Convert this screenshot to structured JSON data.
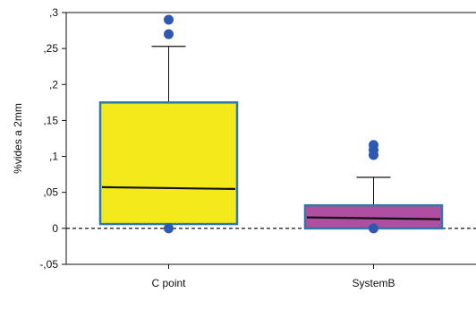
{
  "chart_data": {
    "type": "box",
    "ylabel": "%vides a 2mm",
    "xlabel": "",
    "ylim": [
      -0.05,
      0.3
    ],
    "yticks": [
      -0.05,
      0,
      0.05,
      0.1,
      0.15,
      0.2,
      0.25,
      0.3
    ],
    "ytick_labels": [
      "-,05",
      "0",
      ",05",
      ",1",
      ",15",
      ",2",
      ",25",
      ",3"
    ],
    "reference_line": 0,
    "categories": [
      "C point",
      "SystemB"
    ],
    "boxes": [
      {
        "category": "C point",
        "q1": 0.006,
        "median": 0.056,
        "q3": 0.175,
        "whisker_low": 0.006,
        "whisker_high": 0.253,
        "outliers": [
          0.29,
          0.27,
          0.0
        ],
        "fill": "#f4ea1b"
      },
      {
        "category": "SystemB",
        "q1": 0.0,
        "median": 0.014,
        "q3": 0.032,
        "whisker_low": 0.0,
        "whisker_high": 0.071,
        "outliers": [
          0.116,
          0.109,
          0.102,
          0.0
        ],
        "fill": "#b04fa1"
      }
    ],
    "colors": {
      "box_border": "#2f78a8",
      "outlier": "#2e59b2",
      "median": "#111111"
    },
    "grid": false,
    "legend": "none"
  }
}
